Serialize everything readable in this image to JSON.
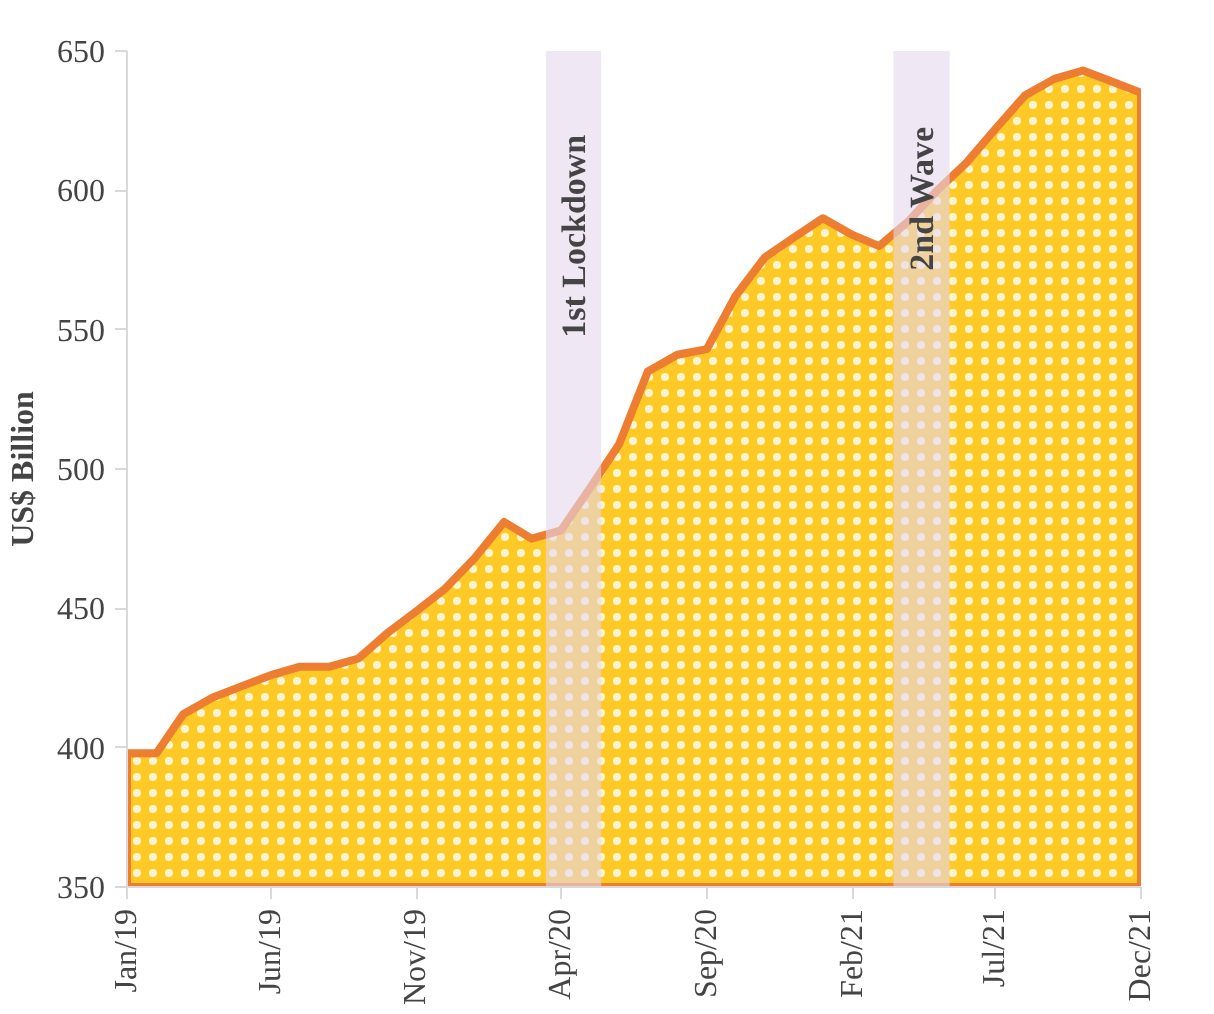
{
  "chart_data": {
    "type": "area",
    "ylabel": "US$ Billion",
    "x": [
      "2019-01",
      "2019-02",
      "2019-03",
      "2019-04",
      "2019-05",
      "2019-06",
      "2019-07",
      "2019-08",
      "2019-09",
      "2019-10",
      "2019-11",
      "2019-12",
      "2020-01",
      "2020-02",
      "2020-03",
      "2020-04",
      "2020-05",
      "2020-06",
      "2020-07",
      "2020-08",
      "2020-09",
      "2020-10",
      "2020-11",
      "2020-12",
      "2021-01",
      "2021-02",
      "2021-03",
      "2021-04",
      "2021-05",
      "2021-06",
      "2021-07",
      "2021-08",
      "2021-09",
      "2021-10",
      "2021-11",
      "2021-12"
    ],
    "series": [
      {
        "color": "#ed7d31",
        "values": [
          398,
          398,
          412,
          418,
          422,
          426,
          429,
          429,
          432,
          441,
          449,
          457,
          468,
          481,
          475,
          478,
          493,
          509,
          535,
          541,
          543,
          562,
          576,
          583,
          590,
          584,
          580,
          589,
          600,
          610,
          622,
          634,
          640,
          643,
          639,
          635
        ]
      }
    ],
    "ylim": [
      350,
      650
    ],
    "yticks": [
      350,
      400,
      450,
      500,
      550,
      600,
      650
    ],
    "xlim": [
      "2019-01",
      "2021-12"
    ],
    "xticks": [
      {
        "value": "2019-01",
        "label": "Jan/19"
      },
      {
        "value": "2019-06",
        "label": "Jun/19"
      },
      {
        "value": "2019-11",
        "label": "Nov/19"
      },
      {
        "value": "2020-04",
        "label": "Apr/20"
      },
      {
        "value": "2020-09",
        "label": "Sep/20"
      },
      {
        "value": "2021-02",
        "label": "Feb/21"
      },
      {
        "value": "2021-07",
        "label": "Jul/21"
      },
      {
        "value": "2021-12",
        "label": "Dec/21"
      }
    ],
    "bands": [
      {
        "axis": "x",
        "from": "2020-03-16",
        "to": "2020-05-13",
        "label": "1st  Lockdown",
        "color": "#e4d7ec"
      },
      {
        "axis": "x",
        "from": "2021-03-16",
        "to": "2021-05-14",
        "label": "2nd Wave",
        "color": "#e4d7ec"
      }
    ],
    "grid": false
  }
}
